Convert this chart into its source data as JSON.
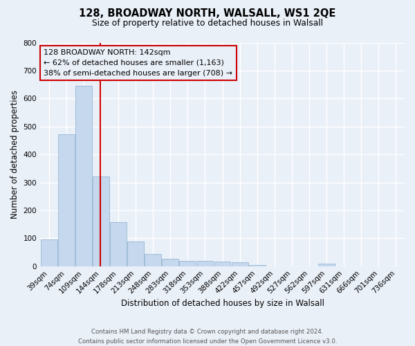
{
  "title": "128, BROADWAY NORTH, WALSALL, WS1 2QE",
  "subtitle": "Size of property relative to detached houses in Walsall",
  "xlabel": "Distribution of detached houses by size in Walsall",
  "ylabel": "Number of detached properties",
  "footer_line1": "Contains HM Land Registry data © Crown copyright and database right 2024.",
  "footer_line2": "Contains public sector information licensed under the Open Government Licence v3.0.",
  "categories": [
    "39sqm",
    "74sqm",
    "109sqm",
    "144sqm",
    "178sqm",
    "213sqm",
    "248sqm",
    "283sqm",
    "318sqm",
    "353sqm",
    "388sqm",
    "422sqm",
    "457sqm",
    "492sqm",
    "527sqm",
    "562sqm",
    "597sqm",
    "631sqm",
    "666sqm",
    "701sqm",
    "736sqm"
  ],
  "bar_values": [
    95,
    472,
    645,
    320,
    158,
    88,
    43,
    27,
    20,
    20,
    17,
    15,
    4,
    0,
    0,
    0,
    8,
    0,
    0,
    0,
    0
  ],
  "bar_color": "#c5d8ed",
  "bar_edge_color": "#a0bdd8",
  "bg_color": "#eaf0f8",
  "grid_color": "#ffffff",
  "marker_line_color": "#cc0000",
  "annotation_box_text": "128 BROADWAY NORTH: 142sqm\n← 62% of detached houses are smaller (1,163)\n38% of semi-detached houses are larger (708) →",
  "annotation_box_edgecolor": "#cc0000",
  "ylim": [
    0,
    800
  ],
  "yticks": [
    0,
    100,
    200,
    300,
    400,
    500,
    600,
    700,
    800
  ],
  "marker_bar_index": 2.97
}
